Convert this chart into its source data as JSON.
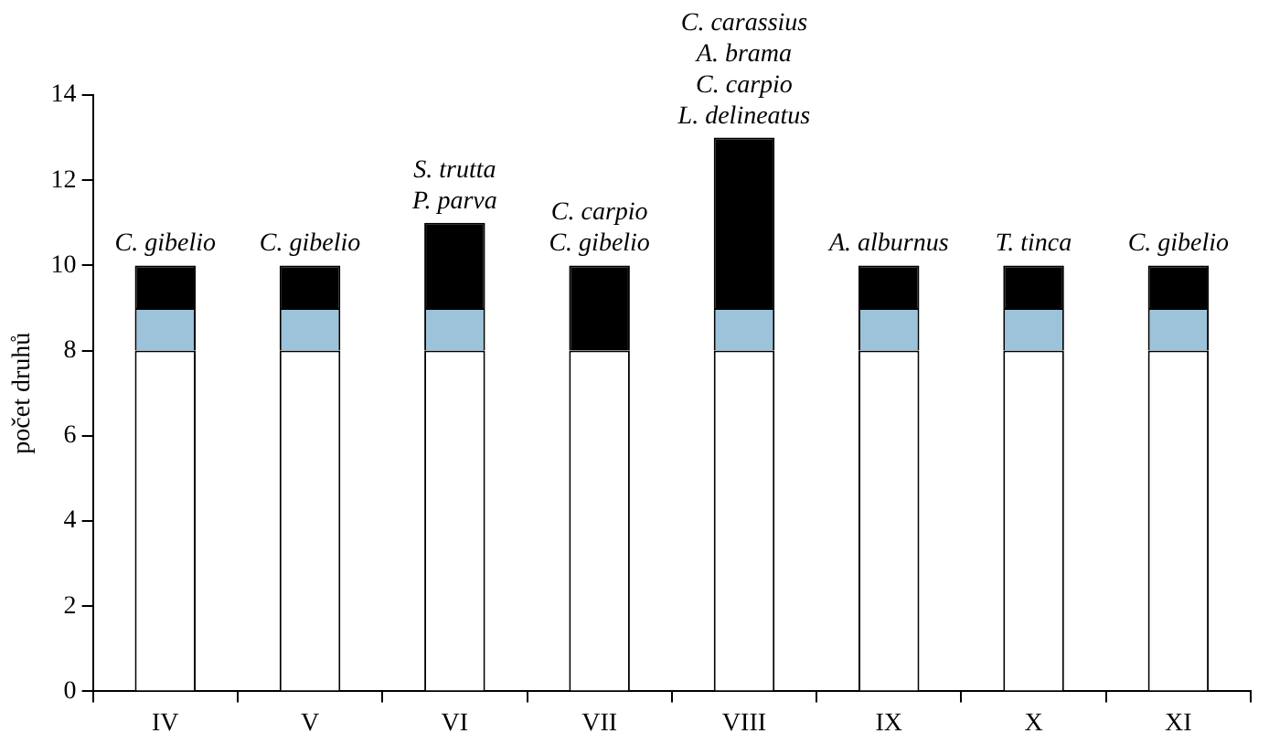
{
  "chart_data": {
    "type": "bar",
    "stacked": true,
    "ylabel": "počet druhů",
    "categories": [
      "IV",
      "V",
      "VI",
      "VII",
      "VIII",
      "IX",
      "X",
      "XI"
    ],
    "series": [
      {
        "color": "#ffffff",
        "values": [
          8,
          8,
          8,
          8,
          8,
          8,
          8,
          8
        ]
      },
      {
        "color": "#9cc3da",
        "values": [
          1,
          1,
          1,
          0,
          1,
          1,
          1,
          1
        ]
      },
      {
        "color": "#000000",
        "values": [
          1,
          1,
          2,
          2,
          4,
          1,
          1,
          1
        ]
      }
    ],
    "ylim": [
      0,
      14
    ],
    "yticks": [
      0,
      2,
      4,
      6,
      8,
      10,
      12,
      14
    ],
    "grid": false,
    "legend": false,
    "annotations": [
      {
        "text": "C. gibelio",
        "x": "IV",
        "y": 10
      },
      {
        "text": "C. gibelio",
        "x": "V",
        "y": 10
      },
      {
        "text": "S. trutta\nP. parva",
        "x": "VI",
        "y": 11
      },
      {
        "text": "C. carpio\nC. gibelio",
        "x": "VII",
        "y": 10
      },
      {
        "text": "C. carassius\nA. brama\nC. carpio\nL. delineatus",
        "x": "VIII",
        "y": 13
      },
      {
        "text": "A. alburnus",
        "x": "IX",
        "y": 10
      },
      {
        "text": "T. tinca",
        "x": "X",
        "y": 10
      },
      {
        "text": "C. gibelio",
        "x": "XI",
        "y": 10
      }
    ]
  }
}
